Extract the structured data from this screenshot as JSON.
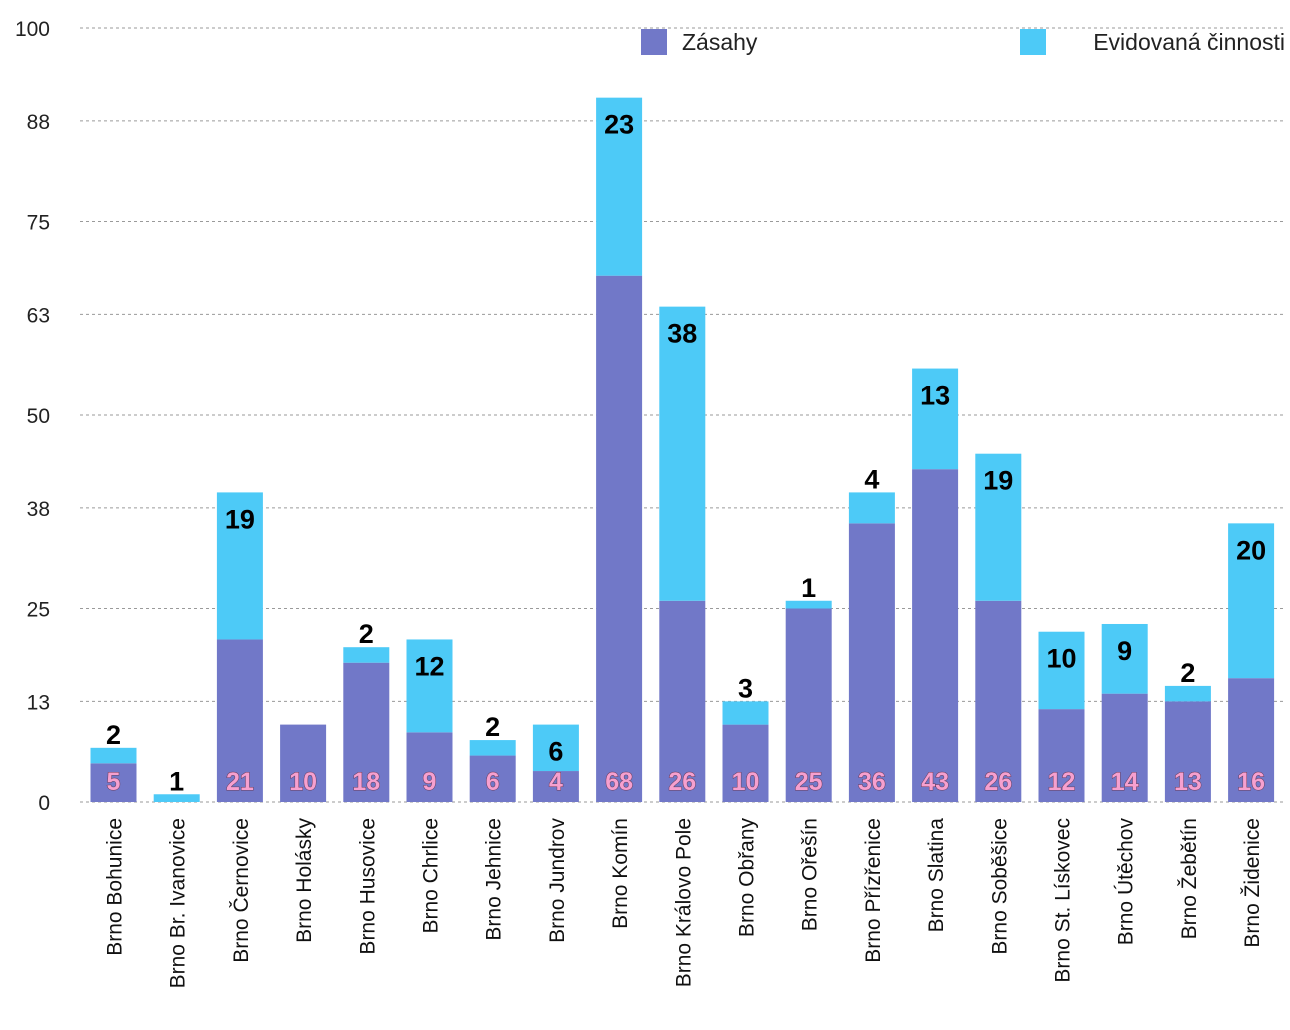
{
  "chart_data": {
    "type": "bar",
    "stacked": true,
    "title": "",
    "xlabel": "",
    "ylabel": "",
    "ylim": [
      0,
      100
    ],
    "yticks": [
      "0",
      "13",
      "25",
      "38",
      "50",
      "63",
      "75",
      "88",
      "100"
    ],
    "grid": "horizontal dotted",
    "legend_position": "top",
    "categories": [
      "Brno Bohunice",
      "Brno Br. Ivanovice",
      "Brno Černovice",
      "Brno Holásky",
      "Brno Husovice",
      "Brno Chrlice",
      "Brno Jehnice",
      "Brno Jundrov",
      "Brno Komín",
      "Brno Královo Pole",
      "Brno Obřany",
      "Brno Ořešín",
      "Brno Přízřenice",
      "Brno Slatina",
      "Brno Soběšice",
      "Brno St. Lískovec",
      "Brno Útěchov",
      "Brno Žebětín",
      "Brno Židenice"
    ],
    "series": [
      {
        "name": "Zásahy",
        "color": "#7178c8",
        "label_color": "#f6a0cf",
        "values": [
          5,
          0,
          21,
          10,
          18,
          9,
          6,
          4,
          68,
          26,
          10,
          25,
          36,
          43,
          26,
          12,
          14,
          13,
          16
        ],
        "labels": [
          "5",
          "",
          "21",
          "10",
          "18",
          "9",
          "6",
          "4",
          "68",
          "26",
          "10",
          "25",
          "36",
          "43",
          "26",
          "12",
          "14",
          "13",
          "16"
        ]
      },
      {
        "name": "Evidovaná činnosti",
        "color": "#4dcaf7",
        "label_color": "#000000",
        "values": [
          2,
          1,
          19,
          0,
          2,
          12,
          2,
          6,
          23,
          38,
          3,
          1,
          4,
          13,
          19,
          10,
          9,
          2,
          20
        ],
        "labels": [
          "2",
          "1",
          "19",
          "",
          "2",
          "12",
          "2",
          "6",
          "23",
          "38",
          "3",
          "1",
          "4",
          "13",
          "19",
          "10",
          "9",
          "2",
          "20"
        ]
      }
    ]
  }
}
